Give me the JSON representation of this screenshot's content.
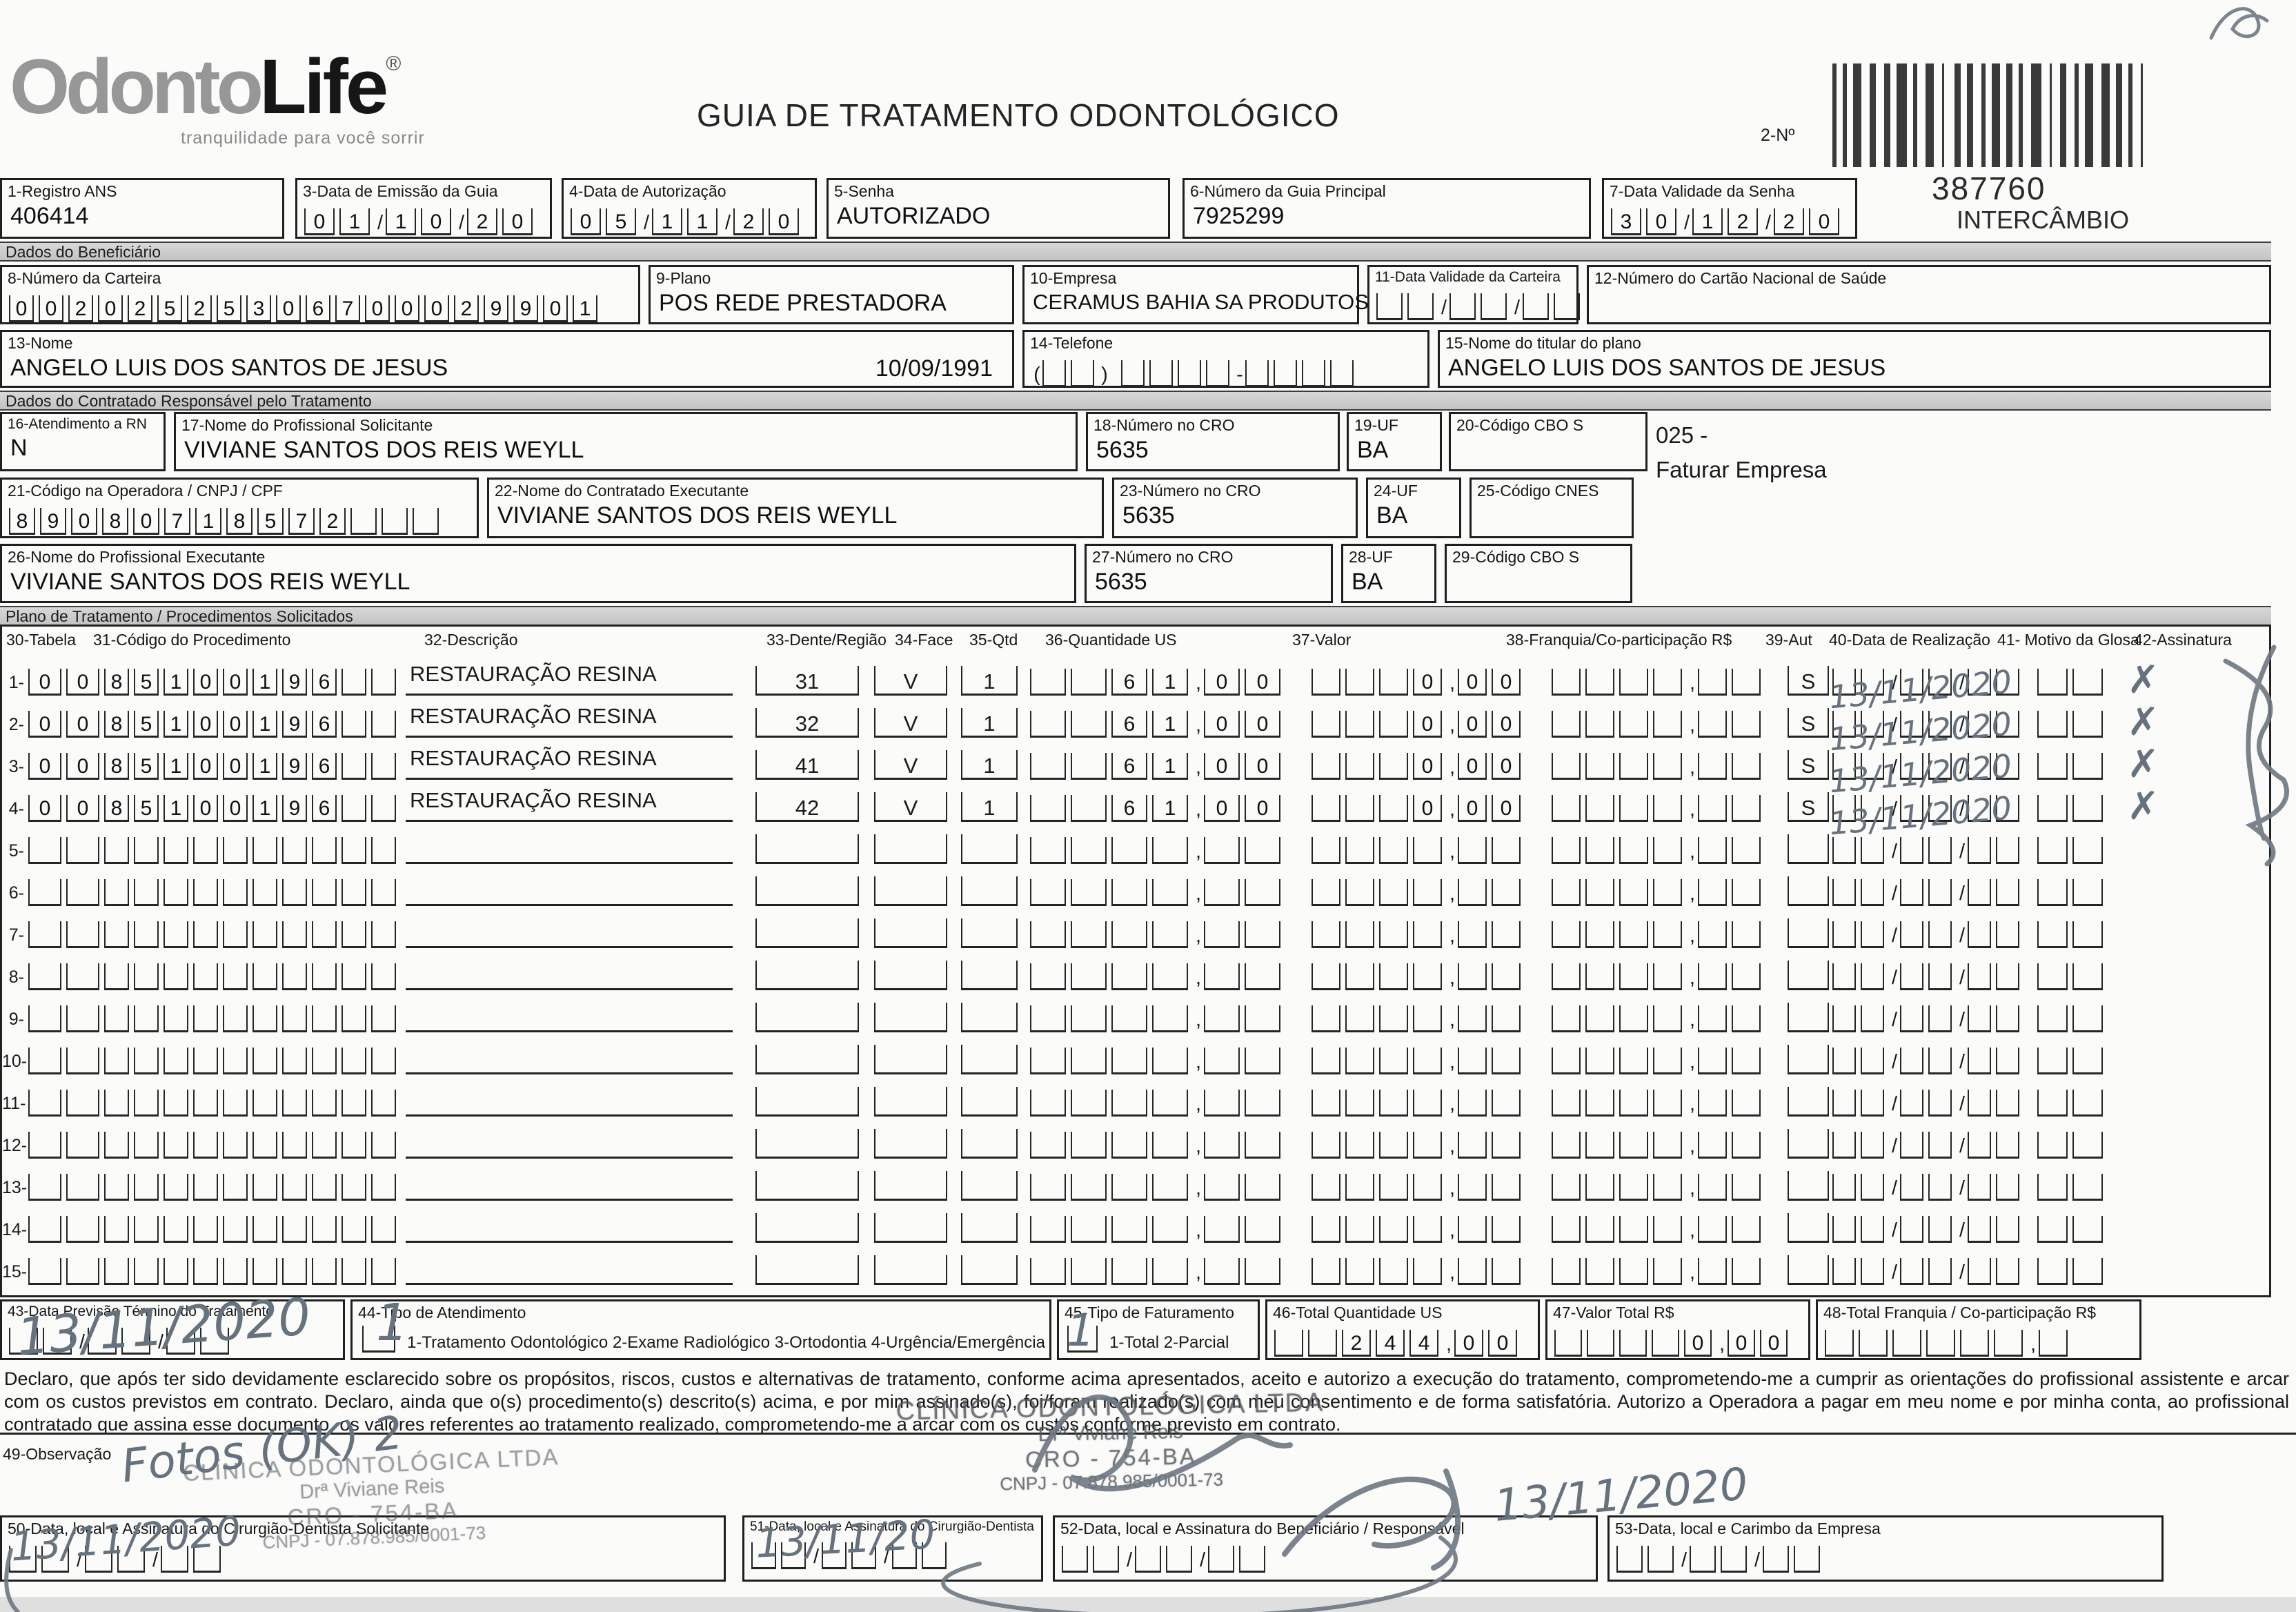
{
  "header": {
    "logo_main": "Odonto",
    "logo_accent": "Life",
    "logo_reg": "®",
    "tagline": "tranquilidade para você sorrir",
    "title": "GUIA DE TRATAMENTO ODONTOLÓGICO",
    "barcode_label": "2-Nº",
    "guide_number": "387760",
    "guide_type": "INTERCÂMBIO"
  },
  "sections": {
    "beneficiario": "Dados do Beneficiário",
    "contratado": "Dados do Contratado Responsável pelo Tratamento",
    "plano": "Plano de Tratamento / Procedimentos Solicitados"
  },
  "fields": {
    "f1": {
      "label": "1-Registro ANS",
      "value": "406414"
    },
    "f3": {
      "label": "3-Data de Emissão da Guia",
      "comb": [
        "0",
        "1",
        "/",
        "1",
        "0",
        "/",
        "2",
        "0"
      ]
    },
    "f4": {
      "label": "4-Data de Autorização",
      "comb": [
        "0",
        "5",
        "/",
        "1",
        "1",
        "/",
        "2",
        "0"
      ]
    },
    "f5": {
      "label": "5-Senha",
      "value": "AUTORIZADO"
    },
    "f6": {
      "label": "6-Número da Guia Principal",
      "value": "7925299"
    },
    "f7": {
      "label": "7-Data Validade da Senha",
      "comb": [
        "3",
        "0",
        "/",
        "1",
        "2",
        "/",
        "2",
        "0"
      ]
    },
    "f8": {
      "label": "8-Número da Carteira",
      "comb": [
        "0",
        "0",
        "2",
        "0",
        "2",
        "5",
        "2",
        "5",
        "3",
        "0",
        "6",
        "7",
        "0",
        "0",
        "0",
        "2",
        "9",
        "9",
        "0",
        "1"
      ]
    },
    "f9": {
      "label": "9-Plano",
      "value": "POS REDE PRESTADORA"
    },
    "f10": {
      "label": "10-Empresa",
      "value": "CERAMUS BAHIA SA PRODUTOS"
    },
    "f11": {
      "label": "11-Data Validade da Carteira",
      "comb": [
        "",
        "",
        "/",
        "",
        "",
        "/",
        "",
        ""
      ]
    },
    "f12": {
      "label": "12-Número do Cartão Nacional de Saúde",
      "value": ""
    },
    "f13": {
      "label": "13-Nome",
      "value": "ANGELO LUIS DOS SANTOS DE JESUS",
      "date_value": "10/09/1991"
    },
    "f14": {
      "label": "14-Telefone",
      "comb": [
        "(",
        "",
        "",
        ")",
        " ",
        "",
        "",
        "",
        "",
        "-",
        "",
        "",
        "",
        ""
      ]
    },
    "f15": {
      "label": "15-Nome do titular do plano",
      "value": "ANGELO LUIS DOS SANTOS DE JESUS"
    },
    "f16": {
      "label": "16-Atendimento a RN",
      "value": "N"
    },
    "f17": {
      "label": "17-Nome do Profissional Solicitante",
      "value": "VIVIANE SANTOS DOS REIS WEYLL"
    },
    "f18": {
      "label": "18-Número no CRO",
      "value": "5635"
    },
    "f19": {
      "label": "19-UF",
      "value": "BA"
    },
    "f20": {
      "label": "20-Código CBO S",
      "value": ""
    },
    "f21": {
      "label": "21-Código na Operadora / CNPJ / CPF",
      "comb": [
        "8",
        "9",
        "0",
        "8",
        "0",
        "7",
        "1",
        "8",
        "5",
        "7",
        "2",
        "",
        "",
        ""
      ]
    },
    "f22": {
      "label": "22-Nome do Contratado Executante",
      "value": "VIVIANE SANTOS DOS REIS WEYLL"
    },
    "f23": {
      "label": "23-Número no CRO",
      "value": "5635"
    },
    "f24": {
      "label": "24-UF",
      "value": "BA"
    },
    "f25": {
      "label": "25-Código CNES",
      "value": ""
    },
    "f26": {
      "label": "26-Nome do Profissional Executante",
      "value": "VIVIANE SANTOS DOS REIS WEYLL"
    },
    "f27": {
      "label": "27-Número no CRO",
      "value": "5635"
    },
    "f28": {
      "label": "28-UF",
      "value": "BA"
    },
    "f29": {
      "label": "29-Código CBO S",
      "value": ""
    }
  },
  "note_025": {
    "line1": "025 -",
    "line2": "Faturar Empresa"
  },
  "plan_table": {
    "headers": [
      "30-Tabela",
      "31-Código do Procedimento",
      "32-Descrição",
      "33-Dente/Região",
      "34-Face",
      "35-Qtd",
      "36-Quantidade US",
      "37-Valor",
      "38-Franquia/Co-participação R$",
      "39-Aut",
      "40-Data de Realização",
      "41- Motivo da Glosa",
      "42-Assinatura"
    ],
    "empty_row": {
      "num": "",
      "tabela": [
        "",
        ""
      ],
      "codigo": [
        "",
        "",
        "",
        "",
        "",
        "",
        "",
        "",
        "",
        ""
      ],
      "descricao": "",
      "dente": "",
      "face": "",
      "qtd": "",
      "qtd_us": [
        "",
        "",
        "",
        "",
        ",",
        "",
        ""
      ],
      "valor": [
        "",
        "",
        "",
        "",
        ",",
        "",
        ""
      ],
      "franquia": [
        "",
        "",
        "",
        "",
        ",",
        "",
        ""
      ],
      "aut": "",
      "data": [
        "",
        "",
        "/",
        "",
        "",
        "/",
        "",
        ""
      ],
      "motivo": [
        "",
        ""
      ]
    },
    "rows": [
      {
        "num": "1-",
        "tabela": [
          "0",
          "0"
        ],
        "codigo": [
          "8",
          "5",
          "1",
          "0",
          "0",
          "1",
          "9",
          "6",
          "",
          ""
        ],
        "descricao": "RESTAURAÇÃO RESINA",
        "dente": "31",
        "face": "V",
        "qtd": "1",
        "qtd_us": [
          "",
          "",
          "6",
          "1",
          ",",
          "0",
          "0"
        ],
        "valor": [
          "",
          "",
          "",
          "0",
          ",",
          "0",
          "0"
        ],
        "aut": "S",
        "hand_date": "13/11/2020",
        "hand_sign": "✗"
      },
      {
        "num": "2-",
        "tabela": [
          "0",
          "0"
        ],
        "codigo": [
          "8",
          "5",
          "1",
          "0",
          "0",
          "1",
          "9",
          "6",
          "",
          ""
        ],
        "descricao": "RESTAURAÇÃO RESINA",
        "dente": "32",
        "face": "V",
        "qtd": "1",
        "qtd_us": [
          "",
          "",
          "6",
          "1",
          ",",
          "0",
          "0"
        ],
        "valor": [
          "",
          "",
          "",
          "0",
          ",",
          "0",
          "0"
        ],
        "aut": "S",
        "hand_date": "13/11/2020",
        "hand_sign": "✗"
      },
      {
        "num": "3-",
        "tabela": [
          "0",
          "0"
        ],
        "codigo": [
          "8",
          "5",
          "1",
          "0",
          "0",
          "1",
          "9",
          "6",
          "",
          ""
        ],
        "descricao": "RESTAURAÇÃO RESINA",
        "dente": "41",
        "face": "V",
        "qtd": "1",
        "qtd_us": [
          "",
          "",
          "6",
          "1",
          ",",
          "0",
          "0"
        ],
        "valor": [
          "",
          "",
          "",
          "0",
          ",",
          "0",
          "0"
        ],
        "aut": "S",
        "hand_date": "13/11/2020",
        "hand_sign": "✗"
      },
      {
        "num": "4-",
        "tabela": [
          "0",
          "0"
        ],
        "codigo": [
          "8",
          "5",
          "1",
          "0",
          "0",
          "1",
          "9",
          "6",
          "",
          ""
        ],
        "descricao": "RESTAURAÇÃO RESINA",
        "dente": "42",
        "face": "V",
        "qtd": "1",
        "qtd_us": [
          "",
          "",
          "6",
          "1",
          ",",
          "0",
          "0"
        ],
        "valor": [
          "",
          "",
          "",
          "0",
          ",",
          "0",
          "0"
        ],
        "aut": "S",
        "hand_date": "13/11/2020",
        "hand_sign": "✗"
      },
      {
        "num": "5-"
      },
      {
        "num": "6-"
      },
      {
        "num": "7-"
      },
      {
        "num": "8-"
      },
      {
        "num": "9-"
      },
      {
        "num": "10-"
      },
      {
        "num": "11-"
      },
      {
        "num": "12-"
      },
      {
        "num": "13-"
      },
      {
        "num": "14-"
      },
      {
        "num": "15-"
      }
    ]
  },
  "bottom": {
    "f43": {
      "label": "43-Data Previsão Término do Tratamento",
      "comb": [
        "",
        "",
        "/",
        "",
        "",
        "/",
        "",
        ""
      ],
      "hand": "13/11/2020"
    },
    "f44": {
      "label": "44-Tipo de Atendimento",
      "options": "1-Tratamento Odontológico  2-Exame Radiológico  3-Ortodontia  4-Urgência/Emergência",
      "hand": "1"
    },
    "f45": {
      "label": "45-Tipo de Faturamento",
      "options": "1-Total  2-Parcial",
      "hand": "1"
    },
    "f46": {
      "label": "46-Total Quantidade US",
      "comb": [
        "",
        "",
        "2",
        "4",
        "4",
        ",",
        "0",
        "0"
      ]
    },
    "f47": {
      "label": "47-Valor Total R$",
      "comb": [
        "",
        "",
        "",
        "",
        "0",
        ",",
        "0",
        "0"
      ]
    },
    "f48": {
      "label": "48-Total Franquia / Co-participação R$",
      "comb": [
        "",
        "",
        "",
        "",
        "",
        "",
        ",",
        ""
      ]
    }
  },
  "declaration": "Declaro, que após ter sido devidamente esclarecido sobre os propósitos, riscos, custos e alternativas de tratamento, conforme acima apresentados, aceito e autorizo a execução do tratamento, comprometendo-me a cumprir as orientações do profissional assistente e arcar com os custos previstos em contrato. Declaro, ainda que o(s) procedimento(s) descrito(s) acima, e por mim assinado(s), foi/foram realizado(s) com meu consentimento e de forma satisfatória. Autorizo a Operadora a pagar em meu nome e por minha conta, ao profissional contratado que assina esse documento, os valores referentes ao tratamento realizado, comprometendo-me a arcar com os custos conforme previsto em contrato.",
  "observacao": {
    "label": "49-Observação",
    "hand": "Fotos (OK) 2"
  },
  "stamp": {
    "line1": "CLÍNICA ODONTOLÓGICA LTDA",
    "line2": "Drª Viviane Reis",
    "line3": "CRO - 754-BA",
    "line4": "CNPJ - 07.878.985/0001-73"
  },
  "signatures": {
    "f50": {
      "label": "50-Data, local e Assinatura do Cirurgião-Dentista Solicitante",
      "comb": [
        "",
        "",
        "/",
        "",
        "",
        "/",
        "",
        ""
      ],
      "hand": "13/11/2020"
    },
    "f51": {
      "label": "51-Data, local e Assinatura do Cirurgião-Dentista",
      "comb": [
        "",
        "",
        "/",
        "",
        "",
        "/",
        "",
        ""
      ],
      "hand": "13/11/20"
    },
    "f52": {
      "label": "52-Data, local e Assinatura do Beneficiário / Responsável",
      "comb": [
        "",
        "",
        "/",
        "",
        "",
        "/",
        "",
        ""
      ],
      "hand": "13/11/2020"
    },
    "f53": {
      "label": "53-Data, local e Carimbo da Empresa",
      "comb": [
        "",
        "",
        "/",
        "",
        "",
        "/",
        "",
        ""
      ]
    }
  }
}
